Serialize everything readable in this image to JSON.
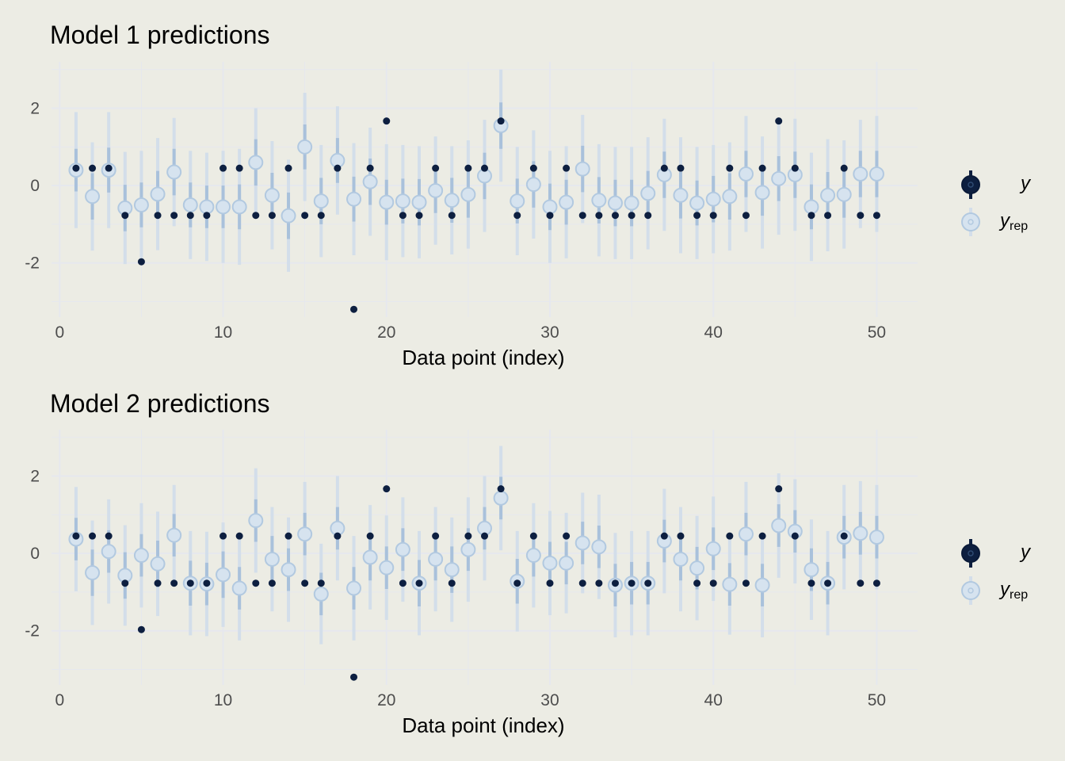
{
  "colors": {
    "background": "#ECECE4",
    "grid": "#E6E8EE",
    "y_point": "#0D1F40",
    "yrep_outer": "#D3DEEA",
    "yrep_inner": "#A9C1DB",
    "yrep_point_fill": "#D6E3EF",
    "yrep_point_stroke": "#B2C9E0"
  },
  "legend": {
    "y_label": "y",
    "yrep_label": "y",
    "yrep_sub": "rep"
  },
  "chart_data": [
    {
      "type": "scatter",
      "title": "Model 1 predictions",
      "xlabel": "Data point (index)",
      "ylabel": "",
      "xlim": [
        -0.5,
        52.5
      ],
      "ylim": [
        -3.4,
        3.2
      ],
      "x_ticks": [
        0,
        10,
        20,
        30,
        40,
        50
      ],
      "x_tick_labels": [
        "0",
        "10",
        "20",
        "30",
        "40",
        "50"
      ],
      "y_ticks": [
        -2,
        0,
        2
      ],
      "y_tick_labels": [
        "-2",
        "0",
        "2"
      ],
      "grid": true,
      "legend_position": "right",
      "x": [
        1,
        2,
        3,
        4,
        5,
        6,
        7,
        8,
        9,
        10,
        11,
        12,
        13,
        14,
        15,
        16,
        17,
        18,
        19,
        20,
        21,
        22,
        23,
        24,
        25,
        26,
        27,
        28,
        29,
        30,
        31,
        32,
        33,
        34,
        35,
        36,
        37,
        38,
        39,
        40,
        41,
        42,
        43,
        44,
        45,
        46,
        47,
        48,
        49,
        50
      ],
      "y": [
        0.45,
        0.45,
        0.45,
        -0.77,
        -1.97,
        -0.77,
        -0.77,
        -0.77,
        -0.77,
        0.45,
        0.45,
        -0.77,
        -0.77,
        0.45,
        -0.77,
        -0.77,
        0.45,
        -3.2,
        0.45,
        1.67,
        -0.77,
        -0.77,
        0.45,
        -0.77,
        0.45,
        0.45,
        1.67,
        -0.77,
        0.45,
        -0.77,
        0.45,
        -0.77,
        -0.77,
        -0.77,
        -0.77,
        -0.77,
        0.45,
        0.45,
        -0.77,
        -0.77,
        0.45,
        -0.77,
        0.45,
        1.67,
        0.45,
        -0.77,
        -0.77,
        0.45,
        -0.77,
        -0.77
      ],
      "yrep_median": [
        0.4,
        -0.28,
        0.4,
        -0.58,
        -0.5,
        -0.22,
        0.35,
        -0.5,
        -0.55,
        -0.55,
        -0.55,
        0.6,
        -0.25,
        -0.78,
        1.0,
        -0.4,
        0.65,
        -0.35,
        0.1,
        -0.43,
        -0.4,
        -0.43,
        -0.13,
        -0.38,
        -0.23,
        0.25,
        1.55,
        -0.4,
        0.03,
        -0.55,
        -0.43,
        0.43,
        -0.38,
        -0.45,
        -0.45,
        -0.2,
        0.28,
        -0.25,
        -0.45,
        -0.35,
        -0.28,
        0.3,
        -0.18,
        0.18,
        0.28,
        -0.55,
        -0.25,
        -0.23,
        0.3,
        0.3
      ],
      "yrep_inner_half": [
        0.55,
        0.6,
        0.58,
        0.6,
        0.58,
        0.6,
        0.6,
        0.58,
        0.55,
        0.55,
        0.58,
        0.6,
        0.58,
        0.6,
        0.58,
        0.6,
        0.58,
        0.58,
        0.6,
        0.58,
        0.58,
        0.6,
        0.58,
        0.58,
        0.6,
        0.6,
        0.6,
        0.58,
        0.6,
        0.6,
        0.58,
        0.6,
        0.6,
        0.6,
        0.6,
        0.58,
        0.6,
        0.6,
        0.58,
        0.6,
        0.6,
        0.6,
        0.6,
        0.58,
        0.6,
        0.58,
        0.6,
        0.6,
        0.6,
        0.6
      ],
      "yrep_outer_half": [
        1.5,
        1.4,
        1.5,
        1.45,
        1.4,
        1.45,
        1.4,
        1.4,
        1.4,
        1.45,
        1.5,
        1.4,
        1.4,
        1.45,
        1.4,
        1.45,
        1.4,
        1.45,
        1.4,
        1.5,
        1.45,
        1.45,
        1.4,
        1.4,
        1.4,
        1.45,
        1.45,
        1.4,
        1.4,
        1.45,
        1.45,
        1.4,
        1.45,
        1.45,
        1.45,
        1.45,
        1.45,
        1.5,
        1.45,
        1.4,
        1.4,
        1.5,
        1.45,
        1.45,
        1.45,
        1.4,
        1.45,
        1.4,
        1.4,
        1.5
      ]
    },
    {
      "type": "scatter",
      "title": "Model 2 predictions",
      "xlabel": "Data point (index)",
      "ylabel": "",
      "xlim": [
        -0.5,
        52.5
      ],
      "ylim": [
        -3.4,
        3.2
      ],
      "x_ticks": [
        0,
        10,
        20,
        30,
        40,
        50
      ],
      "x_tick_labels": [
        "0",
        "10",
        "20",
        "30",
        "40",
        "50"
      ],
      "y_ticks": [
        -2,
        0,
        2
      ],
      "y_tick_labels": [
        "-2",
        "0",
        "2"
      ],
      "grid": true,
      "legend_position": "right",
      "x": [
        1,
        2,
        3,
        4,
        5,
        6,
        7,
        8,
        9,
        10,
        11,
        12,
        13,
        14,
        15,
        16,
        17,
        18,
        19,
        20,
        21,
        22,
        23,
        24,
        25,
        26,
        27,
        28,
        29,
        30,
        31,
        32,
        33,
        34,
        35,
        36,
        37,
        38,
        39,
        40,
        41,
        42,
        43,
        44,
        45,
        46,
        47,
        48,
        49,
        50
      ],
      "y": [
        0.45,
        0.45,
        0.45,
        -0.77,
        -1.97,
        -0.77,
        -0.77,
        -0.77,
        -0.77,
        0.45,
        0.45,
        -0.77,
        -0.77,
        0.45,
        -0.77,
        -0.77,
        0.45,
        -3.2,
        0.45,
        1.67,
        -0.77,
        -0.77,
        0.45,
        -0.77,
        0.45,
        0.45,
        1.67,
        -0.77,
        0.45,
        -0.77,
        0.45,
        -0.77,
        -0.77,
        -0.77,
        -0.77,
        -0.77,
        0.45,
        0.45,
        -0.77,
        -0.77,
        0.45,
        -0.77,
        0.45,
        1.67,
        0.45,
        -0.77,
        -0.77,
        0.45,
        -0.77,
        -0.77
      ],
      "yrep_median": [
        0.37,
        -0.5,
        0.05,
        -0.57,
        -0.05,
        -0.27,
        0.47,
        -0.77,
        -0.79,
        -0.55,
        -0.9,
        0.85,
        -0.15,
        -0.42,
        0.5,
        -1.05,
        0.65,
        -0.9,
        -0.1,
        -0.37,
        0.1,
        -0.77,
        -0.15,
        -0.42,
        0.1,
        0.65,
        1.43,
        -0.72,
        -0.05,
        -0.25,
        -0.25,
        0.27,
        0.17,
        -0.82,
        -0.77,
        -0.77,
        0.32,
        -0.15,
        -0.38,
        0.12,
        -0.8,
        0.5,
        -0.82,
        0.72,
        0.57,
        -0.42,
        -0.77,
        0.42,
        0.52,
        0.42
      ],
      "yrep_inner_half": [
        0.55,
        0.6,
        0.55,
        0.6,
        0.55,
        0.6,
        0.55,
        0.58,
        0.55,
        0.6,
        0.55,
        0.55,
        0.6,
        0.55,
        0.55,
        0.55,
        0.55,
        0.55,
        0.6,
        0.55,
        0.55,
        0.6,
        0.55,
        0.6,
        0.55,
        0.55,
        0.55,
        0.58,
        0.55,
        0.55,
        0.55,
        0.55,
        0.55,
        0.55,
        0.55,
        0.55,
        0.55,
        0.55,
        0.55,
        0.55,
        0.55,
        0.55,
        0.55,
        0.55,
        0.55,
        0.55,
        0.55,
        0.55,
        0.55,
        0.55
      ],
      "yrep_outer_half": [
        1.35,
        1.35,
        1.35,
        1.3,
        1.35,
        1.35,
        1.3,
        1.35,
        1.35,
        1.35,
        1.35,
        1.35,
        1.35,
        1.35,
        1.35,
        1.3,
        1.35,
        1.35,
        1.35,
        1.35,
        1.35,
        1.35,
        1.35,
        1.35,
        1.35,
        1.35,
        1.35,
        1.3,
        1.35,
        1.35,
        1.3,
        1.3,
        1.35,
        1.35,
        1.35,
        1.35,
        1.35,
        1.35,
        1.35,
        1.35,
        1.3,
        1.35,
        1.35,
        1.35,
        1.35,
        1.3,
        1.35,
        1.35,
        1.35,
        1.35
      ]
    }
  ]
}
